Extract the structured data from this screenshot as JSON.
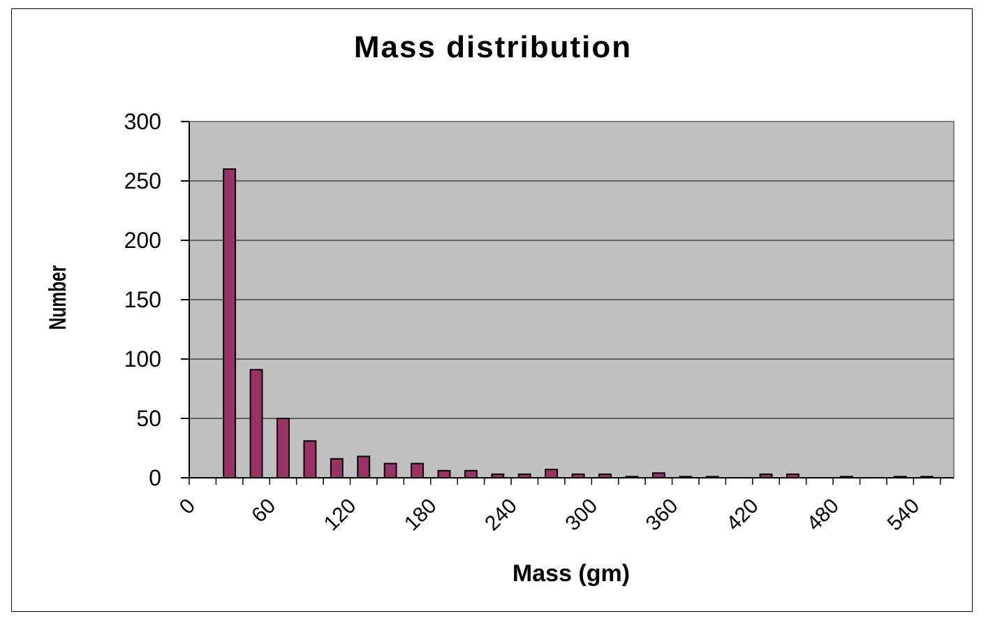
{
  "chart_data": {
    "type": "bar",
    "title": "Mass distribution",
    "xlabel": "Mass (gm)",
    "ylabel": "Number",
    "ylim": [
      0,
      300
    ],
    "yticks": [
      0,
      50,
      100,
      150,
      200,
      250,
      300
    ],
    "xlim": [
      0,
      570
    ],
    "xtick_labels": [
      {
        "value": 0,
        "label": "0"
      },
      {
        "value": 60,
        "label": "60"
      },
      {
        "value": 120,
        "label": "120"
      },
      {
        "value": 180,
        "label": "180"
      },
      {
        "value": 240,
        "label": "240"
      },
      {
        "value": 300,
        "label": "300"
      },
      {
        "value": 360,
        "label": "360"
      },
      {
        "value": 420,
        "label": "420"
      },
      {
        "value": 480,
        "label": "480"
      },
      {
        "value": 540,
        "label": "540"
      }
    ],
    "bin_width": 20,
    "x": [
      20,
      40,
      60,
      80,
      100,
      120,
      140,
      160,
      180,
      200,
      220,
      240,
      260,
      280,
      300,
      320,
      340,
      360,
      380,
      400,
      420,
      440,
      460,
      480,
      500,
      520,
      540
    ],
    "values": [
      260,
      91,
      50,
      31,
      16,
      18,
      12,
      12,
      6,
      6,
      3,
      3,
      7,
      3,
      3,
      1,
      4,
      1,
      1,
      0,
      3,
      3,
      0,
      1,
      0,
      1,
      1
    ],
    "grid": true,
    "legend": "none",
    "colors": {
      "bar_fill": "#993366",
      "bar_stroke": "#000000",
      "plot_background": "#c0c0c0",
      "gridline": "#000000"
    }
  }
}
